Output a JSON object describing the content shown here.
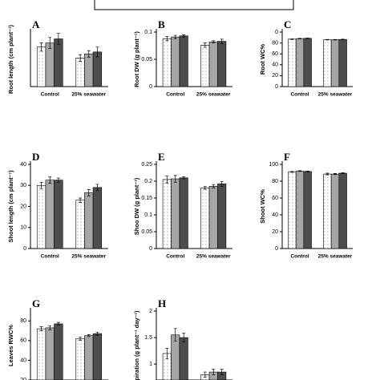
{
  "chart_data": [
    {
      "type": "bar",
      "label": "A",
      "ylabel": "Root length (cm plant⁻¹)",
      "categories": [
        "Control",
        "25% seawater"
      ],
      "ylim": [
        0,
        20
      ],
      "yticks": [],
      "series": [
        {
          "color": "#ffffff",
          "fill_pattern": "dotted",
          "values": [
            14.5,
            10.5
          ],
          "errors": [
            1.5,
            1.2
          ]
        },
        {
          "color": "#a6a6a6",
          "values": [
            16,
            12
          ],
          "errors": [
            2,
            1.2
          ]
        },
        {
          "color": "#4d4d4d",
          "values": [
            17.5,
            12.7
          ],
          "errors": [
            2,
            1.8
          ]
        }
      ]
    },
    {
      "type": "bar",
      "label": "B",
      "ylabel": "Root DW (g plant⁻¹)",
      "categories": [
        "Control",
        "25% seawater"
      ],
      "ylim": [
        0,
        0.1
      ],
      "yticks": [
        0,
        0.05,
        0.1
      ],
      "series": [
        {
          "color": "#ffffff",
          "fill_pattern": "dotted",
          "values": [
            0.088,
            0.076
          ],
          "errors": [
            0.004,
            0.004
          ]
        },
        {
          "color": "#a6a6a6",
          "values": [
            0.091,
            0.082
          ],
          "errors": [
            0.003,
            0.002
          ]
        },
        {
          "color": "#4d4d4d",
          "values": [
            0.093,
            0.083
          ],
          "errors": [
            0.002,
            0.004
          ]
        }
      ]
    },
    {
      "type": "bar",
      "label": "C",
      "ylabel": "Root WC%",
      "categories": [
        "Control",
        "25% seawater"
      ],
      "ylim": [
        0,
        100
      ],
      "yticks": [
        0,
        20,
        40,
        60,
        80,
        {
          "value": 100,
          "label": "0"
        }
      ],
      "series": [
        {
          "color": "#ffffff",
          "fill_pattern": "dotted",
          "values": [
            87,
            86
          ],
          "errors": [
            0.6,
            0.5
          ]
        },
        {
          "color": "#a6a6a6",
          "values": [
            88,
            86
          ],
          "errors": [
            0.5,
            0.5
          ]
        },
        {
          "color": "#4d4d4d",
          "values": [
            88.5,
            86.5
          ],
          "errors": [
            0.5,
            0.5
          ]
        }
      ]
    },
    {
      "type": "bar",
      "label": "D",
      "ylabel": "Shoot length (cm plant⁻¹)",
      "categories": [
        "Control",
        "25% seawater"
      ],
      "ylim": [
        0,
        40
      ],
      "yticks": [
        0,
        10,
        20,
        30,
        40
      ],
      "series": [
        {
          "color": "#ffffff",
          "fill_pattern": "dotted",
          "values": [
            30,
            23
          ],
          "errors": [
            1.5,
            1
          ]
        },
        {
          "color": "#a6a6a6",
          "values": [
            32.5,
            26.5
          ],
          "errors": [
            1.5,
            1.5
          ]
        },
        {
          "color": "#4d4d4d",
          "values": [
            32.5,
            29
          ],
          "errors": [
            1,
            1.5
          ]
        }
      ]
    },
    {
      "type": "bar",
      "label": "E",
      "ylabel": "Shoo DW (g plant⁻¹)",
      "categories": [
        "Control",
        "25% seawater"
      ],
      "ylim": [
        0,
        0.25
      ],
      "yticks": [
        0,
        0.05,
        0.1,
        0.15,
        0.2,
        0.25
      ],
      "series": [
        {
          "color": "#ffffff",
          "fill_pattern": "dotted",
          "values": [
            0.205,
            0.18
          ],
          "errors": [
            0.01,
            0.004
          ]
        },
        {
          "color": "#a6a6a6",
          "values": [
            0.207,
            0.185
          ],
          "errors": [
            0.01,
            0.005
          ]
        },
        {
          "color": "#4d4d4d",
          "values": [
            0.21,
            0.192
          ],
          "errors": [
            0.003,
            0.007
          ]
        }
      ]
    },
    {
      "type": "bar",
      "label": "F",
      "ylabel": "Shoot WC%",
      "categories": [
        "Control",
        "25% seawater"
      ],
      "ylim": [
        0,
        100
      ],
      "yticks": [
        0,
        20,
        40,
        60,
        80,
        100
      ],
      "series": [
        {
          "color": "#ffffff",
          "fill_pattern": "dotted",
          "values": [
            91,
            88.5
          ],
          "errors": [
            0.6,
            1
          ]
        },
        {
          "color": "#a6a6a6",
          "values": [
            92,
            88.5
          ],
          "errors": [
            0.5,
            0.7
          ]
        },
        {
          "color": "#4d4d4d",
          "values": [
            91.5,
            89.5
          ],
          "errors": [
            0.5,
            0.5
          ]
        }
      ]
    },
    {
      "type": "bar",
      "label": "G",
      "ylabel": "Leaves RWC%",
      "ylim": [
        20,
        90
      ],
      "yticks": [
        20,
        40,
        60,
        80
      ],
      "series": [
        {
          "color": "#ffffff",
          "fill_pattern": "dotted",
          "values": [
            72,
            62
          ],
          "errors": [
            2,
            1.5
          ]
        },
        {
          "color": "#a6a6a6",
          "values": [
            73,
            65
          ],
          "errors": [
            2,
            1
          ]
        },
        {
          "color": "#4d4d4d",
          "values": [
            77,
            67
          ],
          "errors": [
            1.5,
            1.5
          ]
        }
      ]
    },
    {
      "type": "bar",
      "label": "H",
      "ylabel": "piration (g plant⁻¹ day⁻¹)",
      "ylim": [
        0.7,
        2
      ],
      "yticks": [
        1,
        1.5,
        2
      ],
      "series": [
        {
          "color": "#ffffff",
          "fill_pattern": "dotted",
          "values": [
            1.2,
            0.8
          ],
          "errors": [
            0.1,
            0.05
          ]
        },
        {
          "color": "#a6a6a6",
          "values": [
            1.55,
            0.85
          ],
          "errors": [
            0.12,
            0.05
          ]
        },
        {
          "color": "#4d4d4d",
          "values": [
            1.5,
            0.85
          ],
          "errors": [
            0.08,
            0.05
          ]
        }
      ]
    }
  ]
}
